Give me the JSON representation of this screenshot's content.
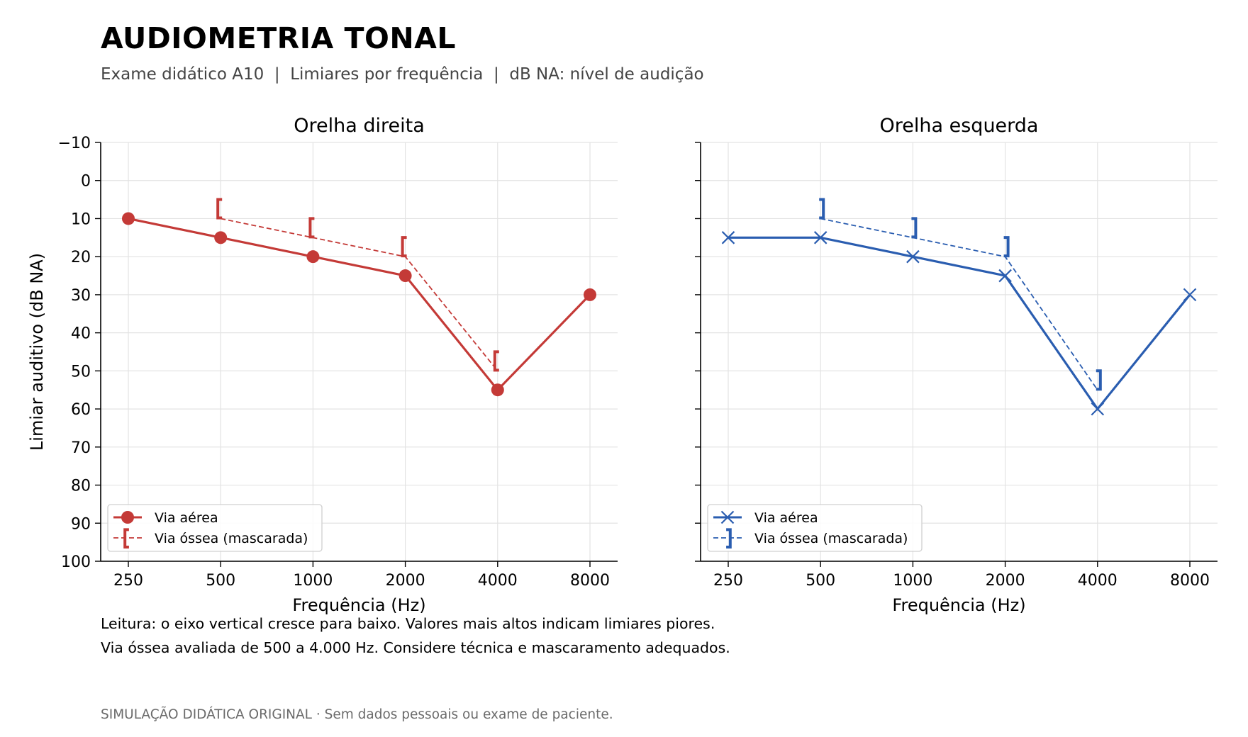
{
  "header": {
    "title": "AUDIOMETRIA TONAL",
    "subtitle": "Exame didático A10  |  Limiares por frequência  |  dB NA: nível de audição"
  },
  "notes": {
    "line1": "Leitura: o eixo vertical cresce para baixo. Valores mais altos indicam limiares piores.",
    "line2": "Via óssea avaliada de 500 a 4.000 Hz. Considere técnica e mascaramento adequados."
  },
  "footer": "SIMULAÇÃO DIDÁTICA ORIGINAL · Sem dados pessoais ou exame de paciente.",
  "chart_data": [
    {
      "type": "line",
      "title": "Orelha direita",
      "xlabel": "Frequência (Hz)",
      "ylabel": "Limiar auditivo (dB NA)",
      "categories": [
        "250",
        "500",
        "1000",
        "2000",
        "4000",
        "8000"
      ],
      "yticks": [
        "−10",
        "0",
        "10",
        "20",
        "30",
        "40",
        "50",
        "60",
        "70",
        "80",
        "90",
        "100"
      ],
      "ylim": [
        -10,
        100
      ],
      "y_inverted": true,
      "grid": true,
      "legend_position": "lower-left",
      "series": [
        {
          "name": "Via aérea",
          "marker": "circle",
          "line": "solid",
          "color": "#c43a37",
          "values": [
            10,
            15,
            20,
            25,
            55,
            30
          ]
        },
        {
          "name": "Via óssea (mascarada)",
          "marker": "left-bracket",
          "line": "dashed",
          "color": "#c43a37",
          "values": [
            null,
            10,
            15,
            20,
            50,
            null
          ]
        }
      ]
    },
    {
      "type": "line",
      "title": "Orelha esquerda",
      "xlabel": "Frequência (Hz)",
      "ylabel": "",
      "categories": [
        "250",
        "500",
        "1000",
        "2000",
        "4000",
        "8000"
      ],
      "ylim": [
        -10,
        100
      ],
      "y_inverted": true,
      "grid": true,
      "legend_position": "lower-left",
      "series": [
        {
          "name": "Via aérea",
          "marker": "x",
          "line": "solid",
          "color": "#2a5db0",
          "values": [
            15,
            15,
            20,
            25,
            60,
            30
          ]
        },
        {
          "name": "Via óssea (mascarada)",
          "marker": "right-bracket",
          "line": "dashed",
          "color": "#2a5db0",
          "values": [
            null,
            10,
            15,
            20,
            55,
            null
          ]
        }
      ]
    }
  ]
}
